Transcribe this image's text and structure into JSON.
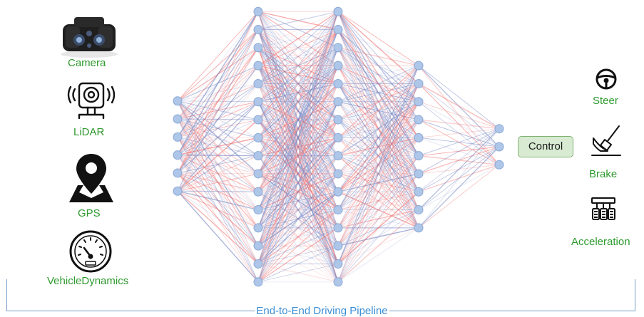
{
  "inputs": {
    "camera": {
      "label": "Camera",
      "icon": "camera-icon"
    },
    "lidar": {
      "label": "LiDAR",
      "icon": "lidar-icon"
    },
    "gps": {
      "label": "GPS",
      "icon": "map-pin-icon"
    },
    "vehicle_dynamics": {
      "label": "VehicleDynamics",
      "icon": "speedometer-icon"
    }
  },
  "control": {
    "label": "Control"
  },
  "outputs": {
    "steer": {
      "label": "Steer",
      "icon": "steering-wheel-icon"
    },
    "brake": {
      "label": "Brake",
      "icon": "brake-pedal-icon"
    },
    "acceleration": {
      "label": "Acceleration",
      "icon": "pedals-icon"
    }
  },
  "pipeline": {
    "label": "End-to-End Driving Pipeline"
  },
  "network": {
    "layer_sizes": [
      6,
      16,
      16,
      10,
      3
    ],
    "node_color": "#aec6e8",
    "node_stroke": "#8aa8d6",
    "edge_red": "#ef6f6f",
    "edge_blue": "#6f7fbf"
  },
  "colors": {
    "label_green": "#2e9a2e",
    "title_blue": "#3b8fd6"
  }
}
